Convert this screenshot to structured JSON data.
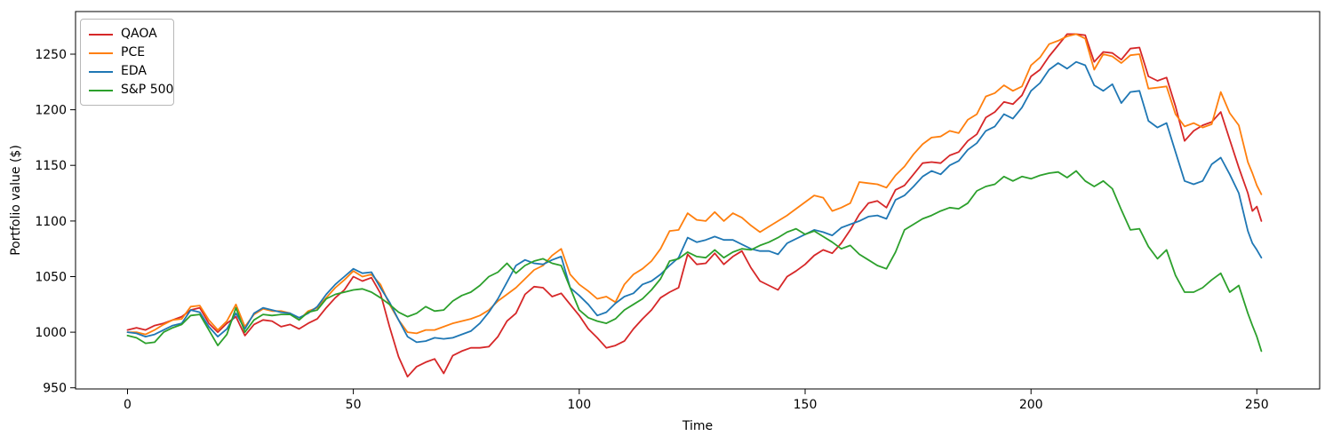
{
  "chart_data": {
    "type": "line",
    "title": "",
    "xlabel": "Time",
    "ylabel": "Portfolio value ($)",
    "x_ticks": [
      0,
      50,
      100,
      150,
      200,
      250
    ],
    "y_ticks": [
      950,
      1000,
      1050,
      1100,
      1150,
      1200,
      1250
    ],
    "xlim": [
      -11.5,
      263.9
    ],
    "ylim": [
      949,
      1288.3
    ],
    "grid": false,
    "legend_position": "upper left",
    "x": [
      0,
      2,
      4,
      6,
      8,
      10,
      12,
      14,
      16,
      18,
      20,
      22,
      24,
      26,
      28,
      30,
      32,
      34,
      36,
      38,
      40,
      42,
      44,
      46,
      48,
      50,
      52,
      54,
      56,
      58,
      60,
      62,
      64,
      66,
      68,
      70,
      72,
      74,
      76,
      78,
      80,
      82,
      84,
      86,
      88,
      90,
      92,
      94,
      96,
      98,
      100,
      102,
      104,
      106,
      108,
      110,
      112,
      114,
      116,
      118,
      120,
      122,
      124,
      126,
      128,
      130,
      132,
      134,
      136,
      138,
      140,
      142,
      144,
      146,
      148,
      150,
      152,
      154,
      156,
      158,
      160,
      162,
      164,
      166,
      168,
      170,
      172,
      174,
      176,
      178,
      180,
      182,
      184,
      186,
      188,
      190,
      192,
      194,
      196,
      198,
      200,
      202,
      204,
      206,
      208,
      210,
      212,
      214,
      216,
      218,
      220,
      222,
      224,
      226,
      228,
      230,
      232,
      234,
      236,
      238,
      240,
      242,
      244,
      246,
      248,
      249,
      250,
      251
    ],
    "series": [
      {
        "name": "QAOA",
        "color": "#d62728",
        "values": [
          1002,
          1004,
          1002,
          1006,
          1008,
          1011,
          1014,
          1020,
          1022,
          1008,
          1000,
          1008,
          1014,
          997,
          1007,
          1011,
          1010,
          1005,
          1007,
          1003,
          1008,
          1012,
          1022,
          1031,
          1038,
          1050,
          1046,
          1049,
          1035,
          1005,
          978,
          960,
          969,
          973,
          976,
          963,
          979,
          983,
          986,
          986,
          987,
          996,
          1010,
          1017,
          1034,
          1041,
          1040,
          1032,
          1035,
          1025,
          1015,
          1003,
          995,
          986,
          988,
          992,
          1003,
          1012,
          1020,
          1031,
          1036,
          1040,
          1070,
          1061,
          1062,
          1071,
          1061,
          1068,
          1073,
          1058,
          1046,
          1042,
          1038,
          1050,
          1055,
          1061,
          1069,
          1074,
          1071,
          1080,
          1092,
          1106,
          1116,
          1118,
          1112,
          1128,
          1132,
          1142,
          1152,
          1153,
          1152,
          1159,
          1162,
          1172,
          1178,
          1193,
          1198,
          1207,
          1205,
          1213,
          1230,
          1236,
          1248,
          1258,
          1268,
          1268,
          1267,
          1243,
          1252,
          1251,
          1245,
          1255,
          1256,
          1230,
          1226,
          1229,
          1203,
          1172,
          1181,
          1186,
          1189,
          1198,
          1173,
          1148,
          1125,
          1109,
          1113,
          1100
        ]
      },
      {
        "name": "PCE",
        "color": "#ff7f0e",
        "values": [
          1000,
          1000,
          998,
          1002,
          1007,
          1011,
          1012,
          1023,
          1024,
          1011,
          1002,
          1010,
          1025,
          1005,
          1016,
          1021,
          1019,
          1019,
          1017,
          1011,
          1019,
          1022,
          1031,
          1040,
          1047,
          1055,
          1050,
          1052,
          1043,
          1025,
          1011,
          1000,
          999,
          1002,
          1002,
          1005,
          1008,
          1010,
          1012,
          1015,
          1020,
          1028,
          1034,
          1040,
          1048,
          1056,
          1060,
          1069,
          1075,
          1052,
          1043,
          1037,
          1030,
          1032,
          1027,
          1043,
          1052,
          1057,
          1064,
          1075,
          1091,
          1092,
          1107,
          1101,
          1100,
          1108,
          1100,
          1107,
          1103,
          1096,
          1090,
          1095,
          1100,
          1105,
          1111,
          1117,
          1123,
          1121,
          1109,
          1112,
          1116,
          1135,
          1134,
          1133,
          1130,
          1141,
          1149,
          1160,
          1169,
          1175,
          1176,
          1181,
          1179,
          1191,
          1196,
          1212,
          1215,
          1222,
          1217,
          1221,
          1240,
          1247,
          1259,
          1262,
          1266,
          1268,
          1264,
          1236,
          1250,
          1248,
          1242,
          1249,
          1250,
          1219,
          1220,
          1221,
          1196,
          1185,
          1188,
          1184,
          1187,
          1216,
          1197,
          1186,
          1153,
          1143,
          1132,
          1124
        ]
      },
      {
        "name": "EDA",
        "color": "#1f77b4",
        "values": [
          1000,
          999,
          996,
          998,
          1002,
          1006,
          1008,
          1020,
          1018,
          1005,
          996,
          1003,
          1017,
          1003,
          1017,
          1022,
          1020,
          1018,
          1017,
          1013,
          1017,
          1023,
          1034,
          1043,
          1050,
          1057,
          1053,
          1054,
          1040,
          1027,
          1011,
          996,
          991,
          992,
          995,
          994,
          995,
          998,
          1001,
          1008,
          1018,
          1030,
          1045,
          1060,
          1065,
          1062,
          1061,
          1065,
          1068,
          1040,
          1033,
          1025,
          1015,
          1018,
          1026,
          1032,
          1035,
          1043,
          1046,
          1052,
          1060,
          1067,
          1085,
          1081,
          1083,
          1086,
          1083,
          1083,
          1079,
          1075,
          1073,
          1073,
          1070,
          1080,
          1084,
          1088,
          1092,
          1090,
          1087,
          1094,
          1097,
          1100,
          1104,
          1105,
          1102,
          1119,
          1123,
          1131,
          1140,
          1145,
          1142,
          1150,
          1154,
          1164,
          1170,
          1181,
          1185,
          1196,
          1192,
          1202,
          1217,
          1224,
          1236,
          1242,
          1237,
          1243,
          1240,
          1222,
          1217,
          1223,
          1206,
          1216,
          1217,
          1190,
          1184,
          1188,
          1162,
          1136,
          1133,
          1136,
          1151,
          1157,
          1142,
          1125,
          1091,
          1080,
          1074,
          1067
        ]
      },
      {
        "name": "S&P 500",
        "color": "#2ca02c",
        "values": [
          997,
          995,
          990,
          991,
          1000,
          1004,
          1007,
          1015,
          1016,
          1002,
          988,
          998,
          1022,
          1000,
          1011,
          1016,
          1015,
          1016,
          1016,
          1011,
          1018,
          1020,
          1030,
          1034,
          1036,
          1038,
          1039,
          1036,
          1031,
          1025,
          1018,
          1014,
          1017,
          1023,
          1019,
          1020,
          1028,
          1033,
          1036,
          1042,
          1050,
          1054,
          1062,
          1053,
          1060,
          1064,
          1066,
          1062,
          1060,
          1040,
          1020,
          1013,
          1010,
          1008,
          1012,
          1020,
          1025,
          1030,
          1038,
          1048,
          1064,
          1066,
          1072,
          1068,
          1067,
          1074,
          1067,
          1072,
          1075,
          1074,
          1078,
          1081,
          1085,
          1090,
          1093,
          1088,
          1091,
          1086,
          1081,
          1075,
          1078,
          1070,
          1065,
          1060,
          1057,
          1072,
          1092,
          1097,
          1102,
          1105,
          1109,
          1112,
          1111,
          1116,
          1127,
          1131,
          1133,
          1140,
          1136,
          1140,
          1138,
          1141,
          1143,
          1144,
          1139,
          1145,
          1136,
          1131,
          1136,
          1129,
          1110,
          1092,
          1093,
          1077,
          1066,
          1074,
          1051,
          1036,
          1036,
          1040,
          1047,
          1053,
          1036,
          1042,
          1017,
          1006,
          996,
          983
        ]
      }
    ]
  }
}
